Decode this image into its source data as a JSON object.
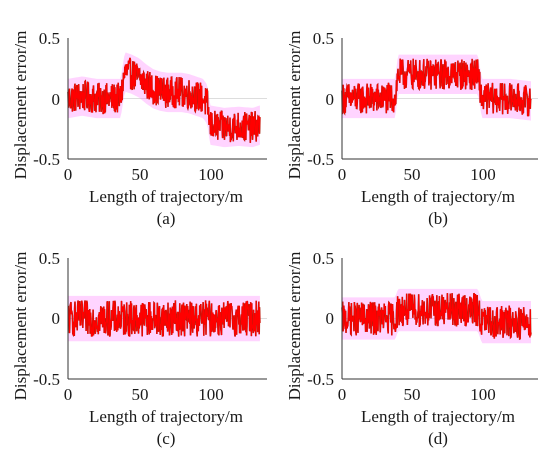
{
  "colors": {
    "signal_red": "#ff0000",
    "signal_dark": "#8b2a10",
    "envelope_pink": "#ff66ff",
    "axis": "#333333"
  },
  "chart_data": [
    {
      "type": "line",
      "caption": "(a)",
      "xlabel": "Length of trajectory/m",
      "ylabel": "Displacement error/m",
      "xlim": [
        0,
        140
      ],
      "ylim": [
        -0.5,
        0.5
      ],
      "xticks": [
        "0",
        "50",
        "100"
      ],
      "yticks": [
        "0.5",
        "0",
        "-0.5"
      ],
      "series": [
        {
          "x": [
            0,
            10,
            20,
            30,
            37,
            40,
            45,
            50,
            55,
            60,
            65,
            70,
            75,
            80,
            85,
            90,
            95,
            98,
            100,
            110,
            120,
            130,
            135
          ],
          "y": [
            0.0,
            0.02,
            0.0,
            0.0,
            0.0,
            0.22,
            0.2,
            0.17,
            0.12,
            0.08,
            0.06,
            0.05,
            0.05,
            0.05,
            0.04,
            0.02,
            0.0,
            -0.05,
            -0.22,
            -0.24,
            -0.23,
            -0.24,
            -0.22
          ],
          "amplitude": 0.13
        }
      ]
    },
    {
      "type": "line",
      "caption": "(b)",
      "xlabel": "Length of trajectory/m",
      "ylabel": "Displacement error/m",
      "xlim": [
        0,
        140
      ],
      "ylim": [
        -0.5,
        0.5
      ],
      "xticks": [
        "0",
        "50",
        "100"
      ],
      "yticks": [
        "0.5",
        "0",
        "-0.5"
      ],
      "series": [
        {
          "x": [
            0,
            20,
            38,
            40,
            60,
            80,
            97,
            100,
            120,
            135
          ],
          "y": [
            0.0,
            0.0,
            0.0,
            0.2,
            0.2,
            0.2,
            0.2,
            0.0,
            0.0,
            -0.02
          ],
          "amplitude": 0.13
        }
      ]
    },
    {
      "type": "line",
      "caption": "(c)",
      "xlabel": "Length of trajectory/m",
      "ylabel": "Displacement error/m",
      "xlim": [
        0,
        140
      ],
      "ylim": [
        -0.5,
        0.5
      ],
      "xticks": [
        "0",
        "50",
        "100"
      ],
      "yticks": [
        "0.5",
        "0",
        "-0.5"
      ],
      "series": [
        {
          "x": [
            0,
            40,
            80,
            120,
            135
          ],
          "y": [
            0.0,
            0.0,
            0.0,
            0.0,
            0.0
          ],
          "amplitude": 0.15
        }
      ]
    },
    {
      "type": "line",
      "caption": "(d)",
      "xlabel": "Length of trajectory/m",
      "ylabel": "Displacement error/m",
      "xlim": [
        0,
        140
      ],
      "ylim": [
        -0.5,
        0.5
      ],
      "xticks": [
        "0",
        "50",
        "100"
      ],
      "yticks": [
        "0.5",
        "0",
        "-0.5"
      ],
      "series": [
        {
          "x": [
            0,
            20,
            38,
            40,
            60,
            80,
            97,
            100,
            120,
            135
          ],
          "y": [
            0.0,
            0.0,
            0.0,
            0.07,
            0.07,
            0.07,
            0.07,
            -0.03,
            -0.03,
            -0.03
          ],
          "amplitude": 0.14
        }
      ]
    }
  ]
}
